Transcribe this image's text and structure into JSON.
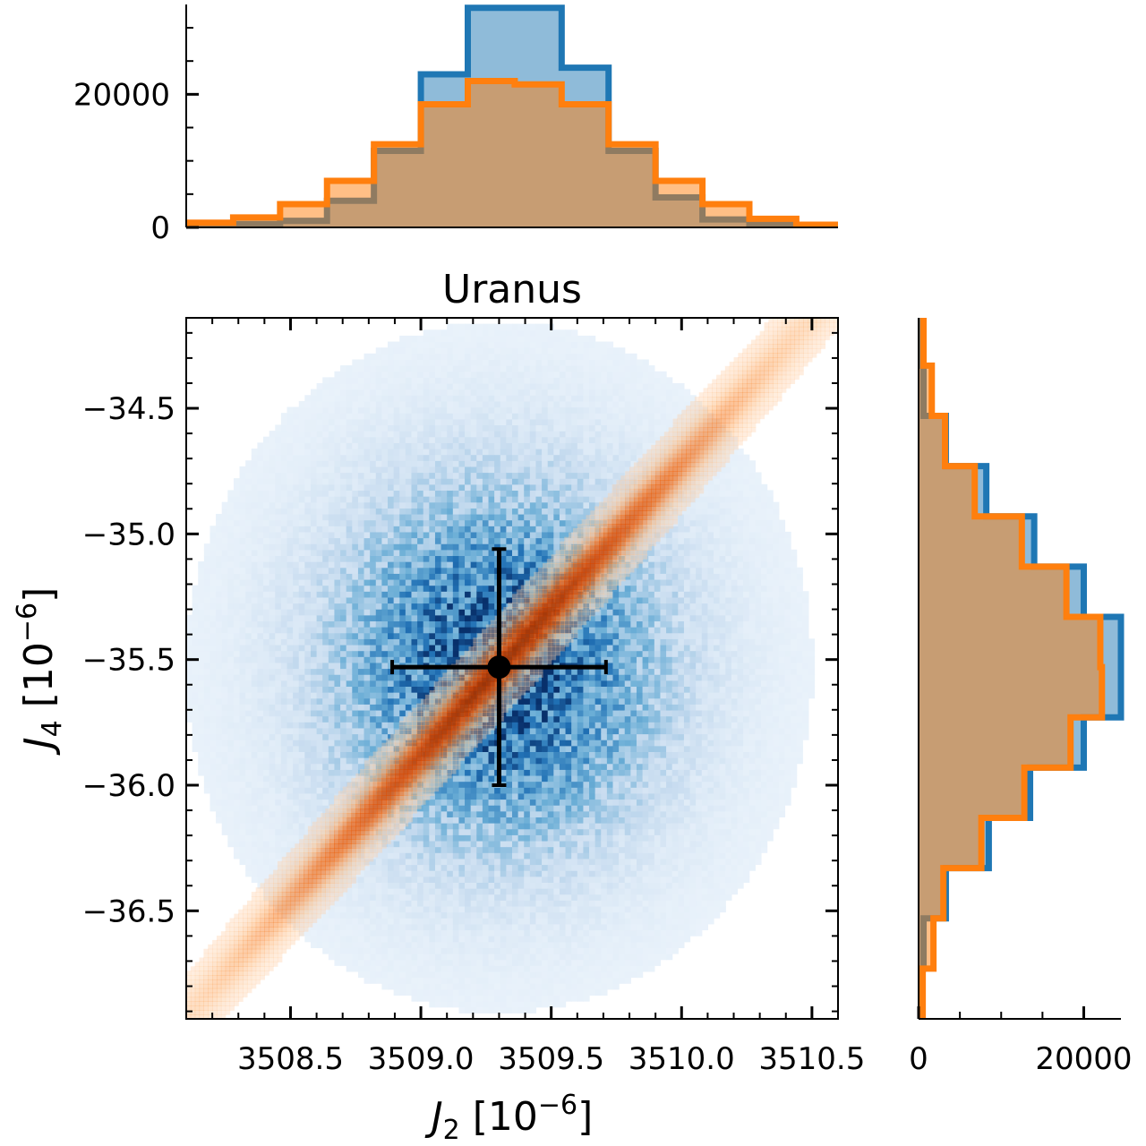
{
  "chart_data": [
    {
      "type": "heatmap",
      "title": "Uranus",
      "xlabel": {
        "base": "J",
        "sub": "2",
        "unit": " [10",
        "exp": "−6",
        "close": "]"
      },
      "ylabel": {
        "base": "J",
        "sub": "4",
        "unit": " [10",
        "exp": "−6",
        "close": "]"
      },
      "xlim": [
        3508.1,
        3510.6
      ],
      "ylim": [
        -36.93,
        -34.14
      ],
      "x_ticks": [
        {
          "value": 3508.5,
          "label": "3508.5"
        },
        {
          "value": 3509.0,
          "label": "3509.0"
        },
        {
          "value": 3509.5,
          "label": "3509.5"
        },
        {
          "value": 3510.0,
          "label": "3510.0"
        },
        {
          "value": 3510.5,
          "label": "3510.5"
        }
      ],
      "y_ticks": [
        {
          "value": -34.5,
          "label": "−34.5"
        },
        {
          "value": -35.0,
          "label": "−35.0"
        },
        {
          "value": -35.5,
          "label": "−35.5"
        },
        {
          "value": -36.0,
          "label": "−36.0"
        },
        {
          "value": -36.5,
          "label": "−36.5"
        }
      ],
      "series": [
        {
          "distribution": "2d-gaussian",
          "color": "#1f77b4",
          "mean": [
            3509.3,
            -35.53
          ],
          "std": [
            0.42,
            0.48
          ],
          "correlation": 0.0
        },
        {
          "distribution": "2d-gaussian-correlated",
          "color": "#ff7f0e",
          "mean": [
            3509.3,
            -35.53
          ],
          "std": [
            0.62,
            0.72
          ],
          "correlation": 0.995
        }
      ],
      "errorbar": {
        "x": 3509.3,
        "y": -35.53,
        "xerr": 0.41,
        "yerr": 0.47,
        "color": "#000000"
      }
    },
    {
      "type": "histogram",
      "orientation": "vertical",
      "ylim": [
        0,
        33500
      ],
      "y_ticks": [
        {
          "value": 0,
          "label": "0"
        },
        {
          "value": 20000,
          "label": "20000"
        }
      ],
      "bin_edges": [
        3508.1,
        3508.28,
        3508.46,
        3508.64,
        3508.82,
        3509.0,
        3509.18,
        3509.36,
        3509.54,
        3509.72,
        3509.9,
        3510.08,
        3510.26,
        3510.44,
        3510.6
      ],
      "series": [
        {
          "color": "#1f77b4",
          "values": [
            200,
            500,
            1000,
            4000,
            11500,
            23000,
            33000,
            33000,
            24000,
            11500,
            4500,
            1200,
            400,
            100
          ]
        },
        {
          "color": "#ff7f0e",
          "values": [
            700,
            1500,
            3500,
            7000,
            12500,
            18500,
            22000,
            21500,
            18500,
            12500,
            7000,
            3500,
            1300,
            400
          ]
        }
      ]
    },
    {
      "type": "histogram",
      "orientation": "horizontal",
      "xlim": [
        0,
        24500
      ],
      "x_ticks": [
        {
          "value": 0,
          "label": "0"
        },
        {
          "value": 20000,
          "label": "20000"
        }
      ],
      "bin_edges": [
        -36.93,
        -36.73,
        -36.53,
        -36.33,
        -36.13,
        -35.93,
        -35.73,
        -35.53,
        -35.33,
        -35.13,
        -34.93,
        -34.73,
        -34.53,
        -34.33,
        -34.14
      ],
      "series": [
        {
          "color": "#1f77b4",
          "values": [
            200,
            600,
            3300,
            8500,
            13500,
            20000,
            24500,
            24500,
            20000,
            14000,
            8200,
            3300,
            600,
            200
          ]
        },
        {
          "color": "#ff7f0e",
          "values": [
            500,
            1800,
            3000,
            7600,
            12800,
            18400,
            22200,
            22000,
            17900,
            12500,
            6800,
            3200,
            1600,
            600
          ]
        }
      ]
    }
  ]
}
